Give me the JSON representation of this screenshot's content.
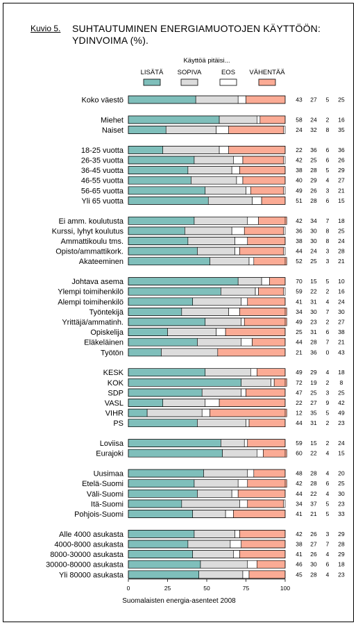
{
  "figure_label": "Kuvio 5.",
  "title_line1": "SUHTAUTUMINEN ENERGIAMUOTOJEN KÄYTTÖÖN:",
  "title_line2": "YDINVOIMA (%).",
  "footer": "Suomalaisten energia-asenteet 2008",
  "colors": {
    "lisaa": "#7fbfbb",
    "sopiva": "#dcdcdc",
    "eos": "#ffffff",
    "vahentaa": "#fbab95"
  },
  "chart_data": {
    "type": "bar",
    "stacked": true,
    "orientation": "horizontal",
    "legend_title": "Käyttöä pitäisi...",
    "legend_position": "top",
    "series": [
      {
        "name": "LISÄTÄ"
      },
      {
        "name": "SOPIVA"
      },
      {
        "name": "EOS"
      },
      {
        "name": "VÄHENTÄÄ"
      }
    ],
    "xlim": [
      0,
      100
    ],
    "xticks": [
      "0",
      "25",
      "50",
      "75",
      "100"
    ],
    "groups": [
      [
        {
          "label": "Koko väestö",
          "values": [
            43,
            27,
            5,
            25
          ]
        }
      ],
      [
        {
          "label": "Miehet",
          "values": [
            58,
            24,
            2,
            16
          ]
        },
        {
          "label": "Naiset",
          "values": [
            24,
            32,
            8,
            35
          ]
        }
      ],
      [
        {
          "label": "18-25 vuotta",
          "values": [
            22,
            36,
            6,
            36
          ]
        },
        {
          "label": "26-35 vuotta",
          "values": [
            42,
            25,
            6,
            26
          ]
        },
        {
          "label": "36-45 vuotta",
          "values": [
            38,
            28,
            5,
            29
          ]
        },
        {
          "label": "46-55 vuotta",
          "values": [
            40,
            29,
            4,
            27
          ]
        },
        {
          "label": "56-65 vuotta",
          "values": [
            49,
            26,
            3,
            21
          ]
        },
        {
          "label": "Yli 65 vuotta",
          "values": [
            51,
            28,
            6,
            15
          ]
        }
      ],
      [
        {
          "label": "Ei amm. koulutusta",
          "values": [
            42,
            34,
            7,
            18
          ]
        },
        {
          "label": "Kurssi, lyhyt koulutus",
          "values": [
            36,
            30,
            8,
            25
          ]
        },
        {
          "label": "Ammattikoulu tms.",
          "values": [
            38,
            30,
            8,
            24
          ]
        },
        {
          "label": "Opisto/ammattikork.",
          "values": [
            44,
            24,
            3,
            28
          ]
        },
        {
          "label": "Akateeminen",
          "values": [
            52,
            25,
            3,
            21
          ]
        }
      ],
      [
        {
          "label": "Johtava asema",
          "values": [
            70,
            15,
            5,
            10
          ]
        },
        {
          "label": "Ylempi toimihenkilö",
          "values": [
            59,
            22,
            2,
            16
          ]
        },
        {
          "label": "Alempi toimihenkilö",
          "values": [
            41,
            31,
            4,
            24
          ]
        },
        {
          "label": "Työntekijä",
          "values": [
            34,
            30,
            7,
            30
          ]
        },
        {
          "label": "Yrittäjä/ammatinh.",
          "values": [
            49,
            23,
            2,
            27
          ]
        },
        {
          "label": "Opiskelija",
          "values": [
            25,
            31,
            6,
            38
          ]
        },
        {
          "label": "Eläkeläinen",
          "values": [
            44,
            28,
            7,
            21
          ]
        },
        {
          "label": "Työtön",
          "values": [
            21,
            36,
            0,
            43
          ]
        }
      ],
      [
        {
          "label": "KESK",
          "values": [
            49,
            29,
            4,
            18
          ]
        },
        {
          "label": "KOK",
          "values": [
            72,
            19,
            2,
            8
          ]
        },
        {
          "label": "SDP",
          "values": [
            47,
            25,
            3,
            25
          ]
        },
        {
          "label": "VASL",
          "values": [
            22,
            27,
            9,
            42
          ]
        },
        {
          "label": "VIHR",
          "values": [
            12,
            35,
            5,
            49
          ]
        },
        {
          "label": "PS",
          "values": [
            44,
            31,
            2,
            23
          ]
        }
      ],
      [
        {
          "label": "Loviisa",
          "values": [
            59,
            15,
            2,
            24
          ]
        },
        {
          "label": "Eurajoki",
          "values": [
            60,
            22,
            4,
            15
          ]
        }
      ],
      [
        {
          "label": "Uusimaa",
          "values": [
            48,
            28,
            4,
            20
          ]
        },
        {
          "label": "Etelä-Suomi",
          "values": [
            42,
            28,
            6,
            25
          ]
        },
        {
          "label": "Väli-Suomi",
          "values": [
            44,
            22,
            4,
            30
          ]
        },
        {
          "label": "Itä-Suomi",
          "values": [
            34,
            37,
            5,
            23
          ]
        },
        {
          "label": "Pohjois-Suomi",
          "values": [
            41,
            21,
            5,
            33
          ]
        }
      ],
      [
        {
          "label": "Alle 4000 asukasta",
          "values": [
            42,
            26,
            3,
            29
          ]
        },
        {
          "label": "4000-8000 asukasta",
          "values": [
            38,
            27,
            7,
            28
          ]
        },
        {
          "label": "8000-30000 asukasta",
          "values": [
            41,
            26,
            4,
            29
          ]
        },
        {
          "label": "30000-80000 asukasta",
          "values": [
            46,
            30,
            6,
            18
          ]
        },
        {
          "label": "Yli 80000 asukasta",
          "values": [
            45,
            28,
            4,
            23
          ]
        }
      ]
    ]
  }
}
